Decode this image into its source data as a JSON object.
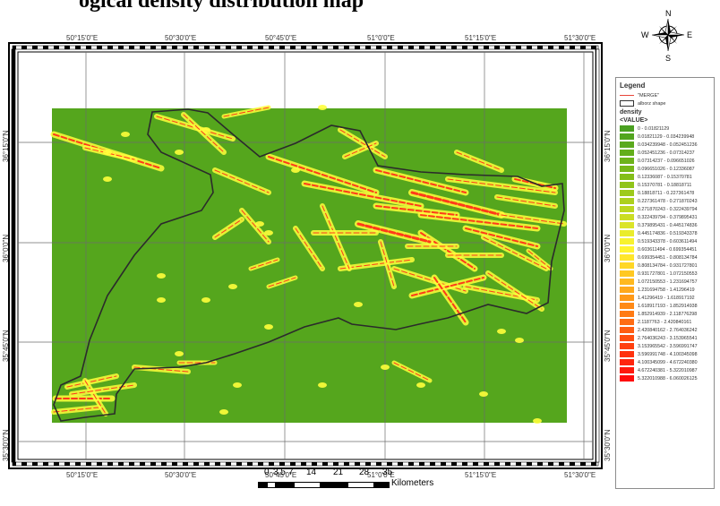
{
  "map": {
    "title": "ogical density distribution map",
    "lon_labels": [
      "50°15'0\"E",
      "50°30'0\"E",
      "50°45'0\"E",
      "51°0'0\"E",
      "51°15'0\"E",
      "51°30'0\"E"
    ],
    "lat_labels": [
      "36°15'0\"N",
      "36°0'0\"N",
      "35°45'0\"N",
      "35°30'0\"N"
    ],
    "north_arrow": {
      "n": "N",
      "s": "S",
      "e": "E",
      "w": "W",
      "icon": "compass-rose-icon"
    },
    "scale_bar": {
      "ticks": [
        "0",
        "3.5",
        "7",
        "14",
        "21",
        "28",
        "35"
      ],
      "unit": "Kilometers"
    },
    "background_color": "#55a61d",
    "line_colors": {
      "low": "#ffff3b",
      "high": "#ff3a1a"
    }
  },
  "legend": {
    "title": "Legend",
    "merge_label": "\"MERGE\"",
    "merge_color": "#e8453a",
    "shape_label": "alborz shape",
    "density_label": "density",
    "value_label": "<VALUE>",
    "classes": [
      {
        "label": "0 - 0.01821129",
        "color": "#4aa021"
      },
      {
        "label": "0.01821129 - 0.034239948",
        "color": "#52a51f"
      },
      {
        "label": "0.034239948 - 0.052451236",
        "color": "#5aa91d"
      },
      {
        "label": "0.052451236 - 0.07314237",
        "color": "#63ae1b"
      },
      {
        "label": "0.07314237 - 0.096651026",
        "color": "#6db31a"
      },
      {
        "label": "0.096651026 - 0.12336087",
        "color": "#77b818"
      },
      {
        "label": "0.12336087 - 0.15370781",
        "color": "#83be18"
      },
      {
        "label": "0.15370781 - 0.18818711",
        "color": "#90c41a"
      },
      {
        "label": "0.18818711 - 0.227361478",
        "color": "#9dca1c"
      },
      {
        "label": "0.227361478 - 0.271870243",
        "color": "#acd01e"
      },
      {
        "label": "0.271870243 - 0.322439794",
        "color": "#bcd721"
      },
      {
        "label": "0.322439794 - 0.379895431",
        "color": "#cbdd24"
      },
      {
        "label": "0.379895431 - 0.445174836",
        "color": "#dbe428"
      },
      {
        "label": "0.445174836 - 0.519343378",
        "color": "#eaec2c"
      },
      {
        "label": "0.519343378 - 0.603611494",
        "color": "#f7f22f"
      },
      {
        "label": "0.603611494 - 0.699354451",
        "color": "#fff430"
      },
      {
        "label": "0.699354451 - 0.808134784",
        "color": "#ffe62b"
      },
      {
        "label": "0.808134784 - 0.931727801",
        "color": "#ffd726"
      },
      {
        "label": "0.931727801 - 1.072150553",
        "color": "#ffc822"
      },
      {
        "label": "1.072150553 - 1.231694757",
        "color": "#ffb91f"
      },
      {
        "label": "1.231694758 - 1.41296419",
        "color": "#ffa91c"
      },
      {
        "label": "1.41296419 - 1.618917192",
        "color": "#ff9a19"
      },
      {
        "label": "1.618917193 - 1.852914938",
        "color": "#ff8a17"
      },
      {
        "label": "1.852914939 - 2.118776298",
        "color": "#ff7b15"
      },
      {
        "label": "2.1187763 - 2.420840161",
        "color": "#ff6c13"
      },
      {
        "label": "2.420840162 - 2.764036242",
        "color": "#ff5d12"
      },
      {
        "label": "2.764036243 - 3.153965541",
        "color": "#ff4e10"
      },
      {
        "label": "3.153965542 - 3.596991747",
        "color": "#ff400f"
      },
      {
        "label": "3.596991748 - 4.100345098",
        "color": "#ff320e"
      },
      {
        "label": "4.100345099 - 4.672240380",
        "color": "#ff250d"
      },
      {
        "label": "4.672240381 - 5.322010987",
        "color": "#ff180c"
      },
      {
        "label": "5.322010988 - 6.060026125",
        "color": "#ff0b0b"
      }
    ]
  }
}
